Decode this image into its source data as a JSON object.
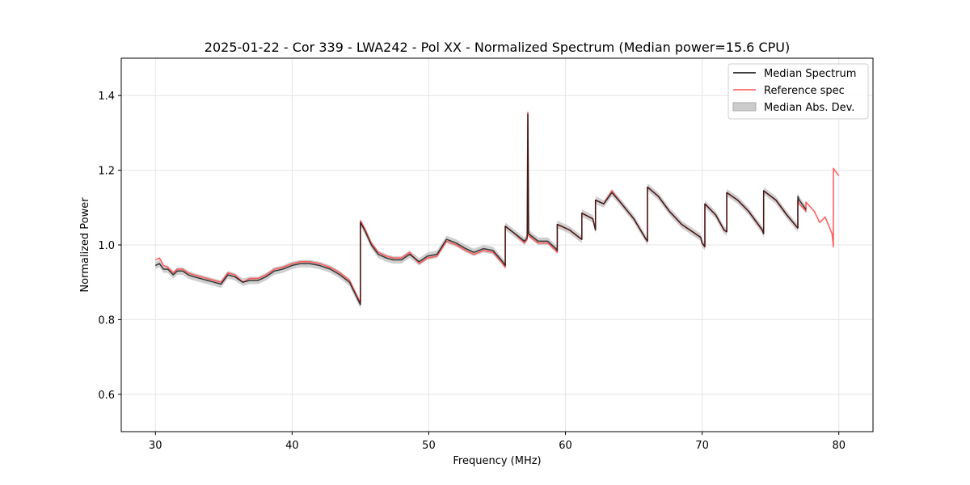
{
  "chart_data": {
    "type": "line",
    "title": "2025-01-22 - Cor 339 - LWA242 - Pol XX - Normalized Spectrum (Median power=15.6 CPU)",
    "xlabel": "Frequency (MHz)",
    "ylabel": "Normalized Power",
    "xlim": [
      27.5,
      82.5
    ],
    "ylim": [
      0.5,
      1.5
    ],
    "xticks": [
      30,
      40,
      50,
      60,
      70,
      80
    ],
    "yticks": [
      0.6,
      0.8,
      1.0,
      1.2,
      1.4
    ],
    "grid": true,
    "legend_position": "top-right",
    "legend": [
      "Median Spectrum",
      "Reference spec",
      "Median Abs. Dev."
    ],
    "colors": {
      "median": "#000000",
      "reference": "#ff5050",
      "mad": "#bbbbbb"
    },
    "series": [
      {
        "name": "Median Spectrum",
        "x": [
          30.0,
          30.3,
          30.6,
          30.9,
          31.3,
          31.6,
          32.0,
          32.4,
          32.8,
          33.3,
          33.8,
          34.3,
          34.8,
          35.3,
          35.8,
          36.4,
          36.9,
          37.5,
          38.1,
          38.7,
          39.3,
          40.0,
          40.6,
          41.3,
          42.0,
          42.8,
          43.5,
          44.2,
          45.0,
          45.0,
          45.3,
          45.8,
          46.3,
          46.9,
          47.4,
          48.0,
          48.6,
          49.3,
          49.9,
          50.6,
          51.3,
          52.0,
          52.7,
          53.3,
          54.0,
          54.7,
          55.4,
          55.6,
          55.6,
          56.3,
          57.0,
          57.2,
          57.25,
          57.3,
          57.3,
          58.0,
          58.7,
          59.3,
          59.4,
          59.4,
          60.3,
          61.0,
          61.2,
          61.2,
          62.0,
          62.2,
          62.2,
          62.8,
          63.4,
          64.0,
          65.0,
          65.9,
          66.0,
          66.0,
          66.8,
          67.6,
          68.5,
          69.3,
          69.9,
          70.0,
          70.1,
          70.2,
          70.2,
          71.0,
          71.6,
          71.8,
          71.8,
          72.6,
          73.4,
          74.4,
          74.5,
          74.5,
          75.4,
          76.2,
          77.0,
          77.0,
          77.1,
          77.6
        ],
        "values": [
          0.945,
          0.95,
          0.935,
          0.935,
          0.92,
          0.93,
          0.93,
          0.92,
          0.915,
          0.91,
          0.905,
          0.9,
          0.895,
          0.92,
          0.915,
          0.9,
          0.905,
          0.905,
          0.915,
          0.93,
          0.935,
          0.945,
          0.95,
          0.95,
          0.945,
          0.935,
          0.92,
          0.9,
          0.84,
          1.06,
          1.04,
          1.0,
          0.975,
          0.965,
          0.96,
          0.96,
          0.975,
          0.955,
          0.97,
          0.975,
          1.015,
          1.005,
          0.99,
          0.98,
          0.99,
          0.985,
          0.955,
          0.945,
          1.05,
          1.03,
          1.01,
          1.02,
          1.35,
          1.04,
          1.03,
          1.01,
          1.01,
          0.99,
          0.985,
          1.055,
          1.04,
          1.02,
          1.015,
          1.085,
          1.07,
          1.04,
          1.12,
          1.11,
          1.14,
          1.115,
          1.07,
          1.015,
          1.01,
          1.155,
          1.13,
          1.09,
          1.055,
          1.035,
          1.02,
          1.005,
          1.0,
          0.995,
          1.11,
          1.08,
          1.04,
          1.035,
          1.14,
          1.12,
          1.09,
          1.04,
          1.03,
          1.145,
          1.12,
          1.08,
          1.045,
          1.13,
          1.12,
          1.095
        ]
      },
      {
        "name": "Reference spec",
        "x": [
          30.0,
          30.3,
          30.6,
          30.9,
          31.3,
          31.6,
          32.0,
          32.4,
          32.8,
          33.3,
          33.8,
          34.3,
          34.8,
          35.3,
          35.8,
          36.4,
          36.9,
          37.5,
          38.1,
          38.7,
          39.3,
          40.0,
          40.6,
          41.3,
          42.0,
          42.8,
          43.5,
          44.2,
          45.0,
          45.0,
          45.3,
          45.8,
          46.3,
          46.9,
          47.4,
          48.0,
          48.6,
          49.3,
          49.9,
          50.6,
          51.3,
          52.0,
          52.7,
          53.3,
          54.0,
          54.7,
          55.4,
          55.6,
          55.6,
          56.3,
          57.0,
          57.2,
          57.25,
          57.3,
          57.3,
          58.0,
          58.7,
          59.3,
          59.4,
          59.4,
          60.3,
          61.0,
          61.2,
          61.2,
          62.0,
          62.2,
          62.2,
          62.8,
          63.4,
          64.0,
          65.0,
          65.9,
          66.0,
          66.0,
          66.8,
          67.6,
          68.5,
          69.3,
          69.9,
          70.0,
          70.1,
          70.2,
          70.2,
          71.0,
          71.6,
          71.8,
          71.8,
          72.6,
          73.4,
          74.4,
          74.5,
          74.5,
          75.4,
          76.2,
          77.0,
          77.0,
          77.1,
          77.6,
          77.6,
          78.2,
          78.6,
          79.0,
          79.5,
          79.6,
          79.6,
          80.0
        ],
        "values": [
          0.96,
          0.965,
          0.945,
          0.94,
          0.925,
          0.935,
          0.935,
          0.925,
          0.92,
          0.915,
          0.91,
          0.905,
          0.9,
          0.925,
          0.92,
          0.9,
          0.91,
          0.91,
          0.92,
          0.935,
          0.94,
          0.95,
          0.955,
          0.955,
          0.95,
          0.94,
          0.925,
          0.905,
          0.845,
          1.065,
          1.045,
          1.005,
          0.98,
          0.97,
          0.965,
          0.965,
          0.98,
          0.95,
          0.965,
          0.97,
          1.01,
          1.0,
          0.985,
          0.975,
          0.985,
          0.98,
          0.95,
          0.94,
          1.05,
          1.03,
          1.005,
          1.015,
          1.355,
          1.035,
          1.025,
          1.005,
          1.005,
          0.985,
          0.98,
          1.055,
          1.04,
          1.02,
          1.015,
          1.085,
          1.07,
          1.04,
          1.12,
          1.11,
          1.145,
          1.115,
          1.07,
          1.015,
          1.01,
          1.155,
          1.13,
          1.09,
          1.055,
          1.035,
          1.02,
          1.005,
          1.0,
          0.995,
          1.11,
          1.08,
          1.04,
          1.035,
          1.14,
          1.12,
          1.09,
          1.04,
          1.03,
          1.145,
          1.12,
          1.08,
          1.045,
          1.12,
          1.11,
          1.09,
          1.115,
          1.09,
          1.06,
          1.075,
          1.03,
          0.995,
          1.205,
          1.185
        ]
      }
    ],
    "mad_band": {
      "name": "Median Abs. Dev.",
      "half_width": 0.01
    }
  }
}
